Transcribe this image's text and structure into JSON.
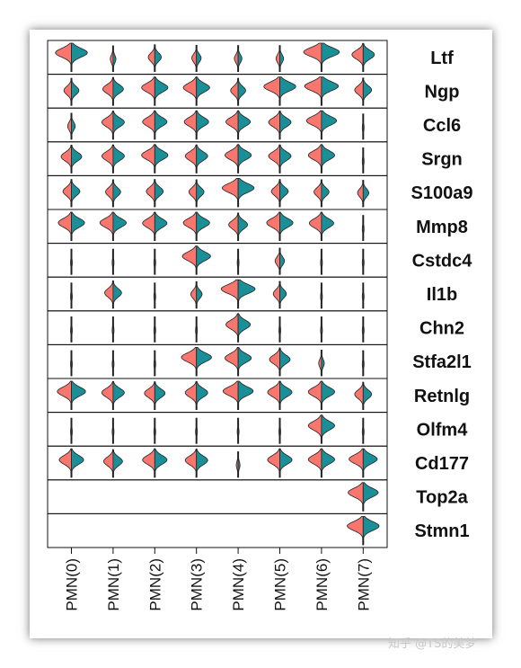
{
  "watermark": "知乎 @TS的美梦",
  "chart_data": {
    "type": "violin",
    "title": "",
    "split": true,
    "colors": {
      "left": "#F8766D",
      "right": "#1B8F97",
      "outline": "#222222"
    },
    "clusters": [
      "PMN(0)",
      "PMN(1)",
      "PMN(2)",
      "PMN(3)",
      "PMN(4)",
      "PMN(5)",
      "PMN(6)",
      "PMN(7)"
    ],
    "genes": [
      "Ltf",
      "Ngp",
      "Ccl6",
      "Srgn",
      "S100a9",
      "Mmp8",
      "Cstdc4",
      "Il1b",
      "Chn2",
      "Stfa2l1",
      "Retnlg",
      "Olfm4",
      "Cd177",
      "Top2a",
      "Stmn1"
    ],
    "expression_level": [
      [
        0.85,
        0.15,
        0.35,
        0.25,
        0.2,
        0.2,
        0.95,
        0.6
      ],
      [
        0.4,
        0.55,
        0.7,
        0.7,
        0.4,
        0.85,
        0.9,
        0.45
      ],
      [
        0.2,
        0.6,
        0.65,
        0.65,
        0.65,
        0.6,
        0.8,
        0.05
      ],
      [
        0.55,
        0.6,
        0.7,
        0.6,
        0.7,
        0.6,
        0.7,
        0.05
      ],
      [
        0.45,
        0.4,
        0.45,
        0.4,
        0.85,
        0.45,
        0.4,
        0.3
      ],
      [
        0.7,
        0.7,
        0.65,
        0.7,
        0.5,
        0.7,
        0.65,
        0.05
      ],
      [
        0.05,
        0.05,
        0.05,
        0.75,
        0.05,
        0.25,
        0.05,
        0.05
      ],
      [
        0.05,
        0.45,
        0.05,
        0.3,
        0.9,
        0.35,
        0.05,
        0.05
      ],
      [
        0.05,
        0.05,
        0.05,
        0.05,
        0.65,
        0.05,
        0.05,
        0.05
      ],
      [
        0.05,
        0.05,
        0.05,
        0.8,
        0.7,
        0.55,
        0.15,
        0.05
      ],
      [
        0.75,
        0.6,
        0.55,
        0.6,
        0.8,
        0.65,
        0.7,
        0.45
      ],
      [
        0.05,
        0.05,
        0.05,
        0.05,
        0.05,
        0.05,
        0.7,
        0.05
      ],
      [
        0.65,
        0.5,
        0.65,
        0.6,
        0.1,
        0.65,
        0.7,
        0.75
      ],
      [
        0.0,
        0.0,
        0.0,
        0.0,
        0.0,
        0.0,
        0.0,
        0.8
      ],
      [
        0.0,
        0.0,
        0.0,
        0.0,
        0.0,
        0.0,
        0.0,
        0.85
      ]
    ],
    "grid": false,
    "legend": "none"
  }
}
